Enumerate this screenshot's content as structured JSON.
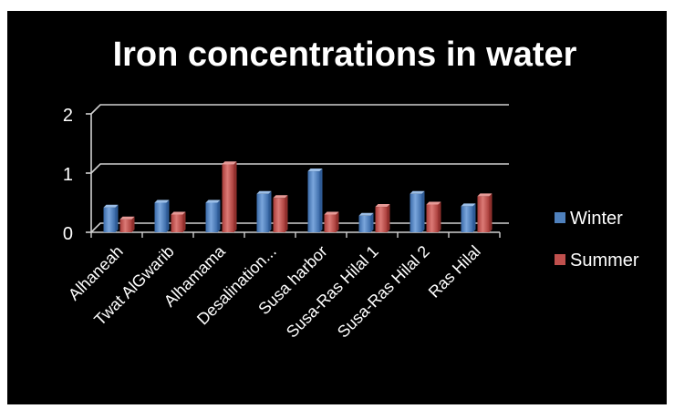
{
  "chart_data": {
    "type": "bar",
    "title": "Iron concentrations in water",
    "xlabel": "",
    "ylabel": "",
    "categories": [
      "Alhaneah",
      "Twat AlGwarib",
      "Alhamama",
      "Desalination...",
      "Susa harbor",
      "Susa-Ras Hilal 1",
      "Susa-Ras Hilal 2",
      "Ras Hilal"
    ],
    "series": [
      {
        "name": "Winter",
        "values": [
          0.42,
          0.5,
          0.5,
          0.65,
          1.03,
          0.28,
          0.65,
          0.44
        ]
      },
      {
        "name": "Summer",
        "values": [
          0.22,
          0.3,
          1.15,
          0.58,
          0.3,
          0.43,
          0.47,
          0.61
        ]
      }
    ],
    "yticks": [
      0,
      1,
      2
    ],
    "ylim": [
      0,
      2
    ],
    "grid": true,
    "legend_position": "right",
    "colors": {
      "Winter": "#4f81bd",
      "Summer": "#c0504d",
      "background": "#000000",
      "text": "#ffffff",
      "axis": "#d0d0d0"
    }
  }
}
